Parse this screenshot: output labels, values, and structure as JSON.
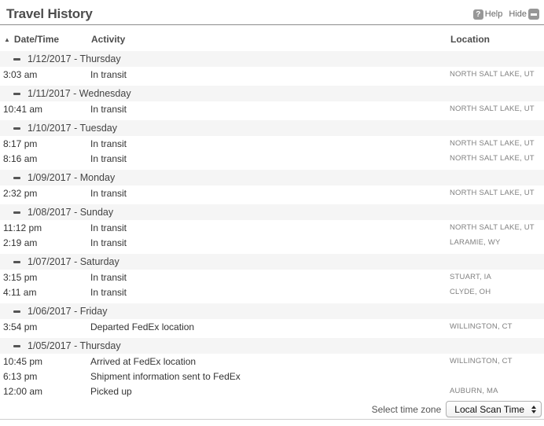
{
  "colors": {
    "title_text": "#4d4d4d",
    "rule_top": "#8c8c8c",
    "rule_bottom": "#cfcfcf",
    "group_row_bg": "#f5f5f5",
    "icon_gray": "#979797",
    "body_text": "#333333",
    "location_text": "#808080"
  },
  "icons": {
    "help": "?",
    "sort_asc": "▲",
    "collapse": "minus",
    "hide": "minimize-window",
    "select_arrows": "up-down-arrows"
  },
  "header": {
    "title": "Travel History",
    "help_label": "Help",
    "hide_label": "Hide"
  },
  "table": {
    "columns": {
      "datetime": "Date/Time",
      "activity": "Activity",
      "location": "Location"
    },
    "groups": [
      {
        "date": "1/12/2017 - Thursday",
        "rows": [
          {
            "time": "3:03 am",
            "activity": "In transit",
            "location": "NORTH SALT LAKE, UT"
          }
        ]
      },
      {
        "date": "1/11/2017 - Wednesday",
        "rows": [
          {
            "time": "10:41 am",
            "activity": "In transit",
            "location": "NORTH SALT LAKE, UT"
          }
        ]
      },
      {
        "date": "1/10/2017 - Tuesday",
        "rows": [
          {
            "time": "8:17 pm",
            "activity": "In transit",
            "location": "NORTH SALT LAKE, UT"
          },
          {
            "time": "8:16 am",
            "activity": "In transit",
            "location": "NORTH SALT LAKE, UT"
          }
        ]
      },
      {
        "date": "1/09/2017 - Monday",
        "rows": [
          {
            "time": "2:32 pm",
            "activity": "In transit",
            "location": "NORTH SALT LAKE, UT"
          }
        ]
      },
      {
        "date": "1/08/2017 - Sunday",
        "rows": [
          {
            "time": "11:12 pm",
            "activity": "In transit",
            "location": "NORTH SALT LAKE, UT"
          },
          {
            "time": "2:19 am",
            "activity": "In transit",
            "location": "LARAMIE, WY"
          }
        ]
      },
      {
        "date": "1/07/2017 - Saturday",
        "rows": [
          {
            "time": "3:15 pm",
            "activity": "In transit",
            "location": "STUART, IA"
          },
          {
            "time": "4:11 am",
            "activity": "In transit",
            "location": "CLYDE, OH"
          }
        ]
      },
      {
        "date": "1/06/2017 - Friday",
        "rows": [
          {
            "time": "3:54 pm",
            "activity": "Departed FedEx location",
            "location": "WILLINGTON, CT"
          }
        ]
      },
      {
        "date": "1/05/2017 - Thursday",
        "rows": [
          {
            "time": "10:45 pm",
            "activity": "Arrived at FedEx location",
            "location": "WILLINGTON, CT"
          },
          {
            "time": "6:13 pm",
            "activity": "Shipment information sent to FedEx",
            "location": ""
          },
          {
            "time": "12:00 am",
            "activity": "Picked up",
            "location": "AUBURN, MA"
          }
        ]
      }
    ]
  },
  "footer": {
    "timezone_label": "Select time zone",
    "timezone_value": "Local Scan Time"
  }
}
